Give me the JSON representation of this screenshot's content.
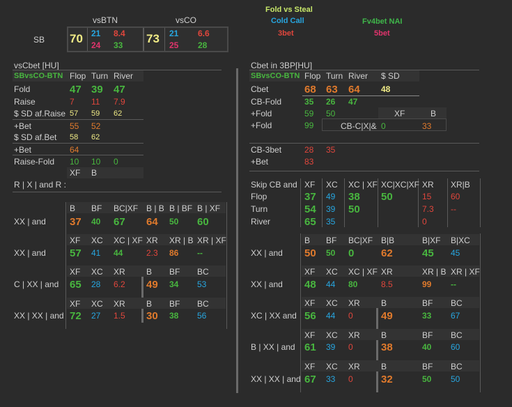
{
  "top": {
    "vsBTN": "vsBTN",
    "vsCO": "vsCO",
    "sb": "SB",
    "legend": {
      "fold_vs_steal": "Fold vs Steal",
      "cold_call": "Cold Call",
      "threebet": "3bet",
      "fv4bet": "Fv4bet NAI",
      "fivebet": "5bet"
    },
    "btn": {
      "main": "70",
      "cc": "21",
      "threebet": "24",
      "fv4": "8.4",
      "fivebet": "33"
    },
    "co": {
      "main": "73",
      "cc": "21",
      "threebet": "25",
      "fv4": "6.6",
      "fivebet": "28"
    }
  },
  "left": {
    "title": "vsCbet [HU]",
    "sub": "SBvsCO-BTN",
    "cols": [
      "Flop",
      "Turn",
      "River"
    ],
    "rows": [
      {
        "label": "Fold",
        "v": [
          "47",
          "39",
          "47"
        ]
      },
      {
        "label": "Raise",
        "v": [
          "7",
          "11",
          "7.9"
        ]
      },
      {
        "label": "$ SD af.Raise",
        "v": [
          "57",
          "59",
          "62"
        ]
      },
      {
        "label": "+Bet",
        "v": [
          "55",
          "52",
          ""
        ]
      },
      {
        "label": "$ SD af.Bet",
        "v": [
          "58",
          "62",
          ""
        ]
      },
      {
        "label": "+Bet",
        "v": [
          "64",
          "",
          ""
        ]
      },
      {
        "label": "Raise-Fold",
        "v": [
          "10",
          "10",
          "0"
        ]
      }
    ],
    "xf": "XF",
    "b": "B",
    "rxr": "R | X | and R :",
    "g1": {
      "h": [
        "B",
        "BF",
        "BC|XF",
        "B | B",
        "B | BF",
        "B | XF"
      ],
      "label": "XX | and",
      "v": [
        "37",
        "40",
        "67",
        "64",
        "50",
        "60"
      ]
    },
    "g2": {
      "h": [
        "XF",
        "XC",
        "XC | XF",
        "XR",
        "XR | B",
        "XR | XF"
      ],
      "label": "XX | and",
      "v": [
        "57",
        "41",
        "44",
        "2.3",
        "86",
        "--"
      ]
    },
    "g3": {
      "h": [
        "XF",
        "XC",
        "XR",
        "B",
        "BF",
        "BC"
      ],
      "label": "C | XX | and",
      "v": [
        "65",
        "28",
        "6.2",
        "49",
        "34",
        "53"
      ]
    },
    "g4": {
      "h": [
        "XF",
        "XC",
        "XR",
        "B",
        "BF",
        "BC"
      ],
      "label": "XX | XX | and",
      "v": [
        "72",
        "27",
        "1.5",
        "30",
        "38",
        "56"
      ]
    }
  },
  "right": {
    "title": "Cbet in 3BP[HU]",
    "sub": "SBvsCO-BTN",
    "cols": [
      "Flop",
      "Turn",
      "River",
      "$ SD"
    ],
    "cbet": {
      "label": "Cbet",
      "v": [
        "68",
        "63",
        "64",
        "48"
      ]
    },
    "cbfold": {
      "label": "CB-Fold",
      "v": [
        "35",
        "26",
        "47"
      ]
    },
    "fold1": {
      "label": "+Fold",
      "v": [
        "59",
        "50"
      ]
    },
    "fold2": {
      "label": "+Fold",
      "v": [
        "99"
      ]
    },
    "xfb": [
      "XF",
      "B"
    ],
    "cbcxb": {
      "label": "CB-C|X|&",
      "v": [
        "0",
        "33"
      ]
    },
    "cb3bet": {
      "label": "CB-3bet",
      "v": [
        "28",
        "35"
      ]
    },
    "bet": {
      "label": "+Bet",
      "v": [
        "83"
      ]
    },
    "skip": {
      "title": "Skip CB and",
      "rows": [
        "Flop",
        "Turn",
        "River"
      ],
      "h": [
        "XF",
        "XC",
        "XC | XF",
        "XC|XC|XF",
        "XR",
        "XR|B"
      ],
      "flop": [
        "37",
        "49",
        "38",
        "50",
        "15",
        "60"
      ],
      "turn": [
        "54",
        "39",
        "50",
        "",
        "7.3",
        "--"
      ],
      "river": [
        "65",
        "35",
        "",
        "",
        "0",
        ""
      ]
    },
    "g1": {
      "h": [
        "B",
        "BF",
        "BC|XF",
        "B|B",
        "B|XF",
        "B|XC"
      ],
      "label": "XX | and",
      "v": [
        "50",
        "50",
        "0",
        "62",
        "45",
        "45"
      ]
    },
    "g2": {
      "h": [
        "XF",
        "XC",
        "XC | XF",
        "XR",
        "XR | B",
        "XR | XF"
      ],
      "label": "XX | and",
      "v": [
        "48",
        "44",
        "80",
        "8.5",
        "99",
        "--"
      ]
    },
    "g3": {
      "h": [
        "XF",
        "XC",
        "XR",
        "B",
        "BF",
        "BC"
      ],
      "label": "XC | XX and",
      "v": [
        "56",
        "44",
        "0",
        "49",
        "33",
        "67"
      ]
    },
    "g4": {
      "h": [
        "XF",
        "XC",
        "XR",
        "B",
        "BF",
        "BC"
      ],
      "label": "B | XX | and",
      "v": [
        "61",
        "39",
        "0",
        "38",
        "40",
        "60"
      ]
    },
    "g5": {
      "h": [
        "XF",
        "XC",
        "XR",
        "B",
        "BF",
        "BC"
      ],
      "label": "XX | XX | and",
      "v": [
        "67",
        "33",
        "0",
        "32",
        "50",
        "50"
      ]
    }
  }
}
